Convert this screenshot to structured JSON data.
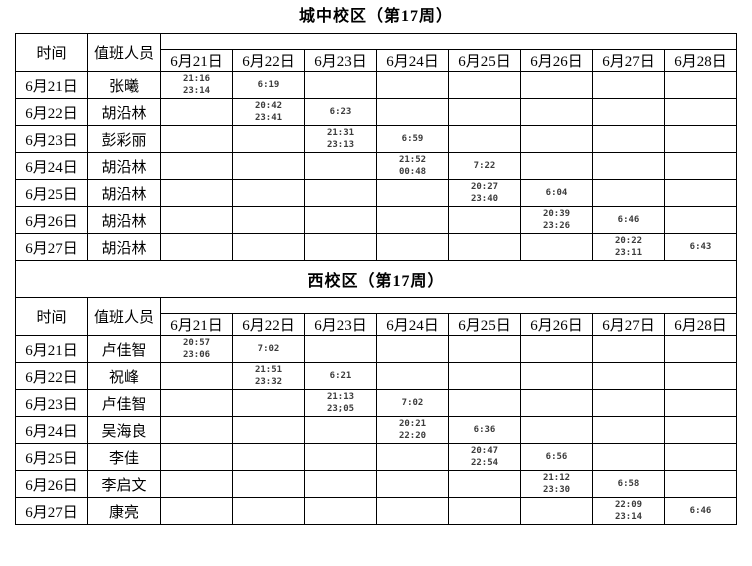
{
  "page": {
    "background": "#ffffff",
    "border_color": "#000000",
    "time_text_color": "#3c3c3c"
  },
  "tables": [
    {
      "title": "城中校区（第17周）",
      "headers": {
        "time": "时间",
        "person": "值班人员"
      },
      "date_columns": [
        "6月21日",
        "6月22日",
        "6月23日",
        "6月24日",
        "6月25日",
        "6月26日",
        "6月27日",
        "6月28日"
      ],
      "rows": [
        {
          "date": "6月21日",
          "person": "张曦",
          "times": [
            "21:16\n23:14",
            "6:19",
            "",
            "",
            "",
            "",
            "",
            ""
          ]
        },
        {
          "date": "6月22日",
          "person": "胡沿林",
          "times": [
            "",
            "20:42\n23:41",
            "6:23",
            "",
            "",
            "",
            "",
            ""
          ]
        },
        {
          "date": "6月23日",
          "person": "彭彩丽",
          "times": [
            "",
            "",
            "21:31\n23:13",
            "6:59",
            "",
            "",
            "",
            ""
          ]
        },
        {
          "date": "6月24日",
          "person": "胡沿林",
          "times": [
            "",
            "",
            "",
            "21:52\n00:48",
            "7:22",
            "",
            "",
            ""
          ]
        },
        {
          "date": "6月25日",
          "person": "胡沿林",
          "times": [
            "",
            "",
            "",
            "",
            "20:27\n23:40",
            "6:04",
            "",
            ""
          ]
        },
        {
          "date": "6月26日",
          "person": "胡沿林",
          "times": [
            "",
            "",
            "",
            "",
            "",
            "20:39\n23:26",
            "6:46",
            ""
          ]
        },
        {
          "date": "6月27日",
          "person": "胡沿林",
          "times": [
            "",
            "",
            "",
            "",
            "",
            "",
            "20:22\n23:11",
            "6:43"
          ]
        }
      ]
    },
    {
      "title": "西校区（第17周）",
      "headers": {
        "time": "时间",
        "person": "值班人员"
      },
      "date_columns": [
        "6月21日",
        "6月22日",
        "6月23日",
        "6月24日",
        "6月25日",
        "6月26日",
        "6月27日",
        "6月28日"
      ],
      "rows": [
        {
          "date": "6月21日",
          "person": "卢佳智",
          "times": [
            "20:57\n23:06",
            "7:02",
            "",
            "",
            "",
            "",
            "",
            ""
          ]
        },
        {
          "date": "6月22日",
          "person": "祝峰",
          "times": [
            "",
            "21:51\n23:32",
            "6:21",
            "",
            "",
            "",
            "",
            ""
          ]
        },
        {
          "date": "6月23日",
          "person": "卢佳智",
          "times": [
            "",
            "",
            "21:13\n23;05",
            "7:02",
            "",
            "",
            "",
            ""
          ]
        },
        {
          "date": "6月24日",
          "person": "吴海良",
          "times": [
            "",
            "",
            "",
            "20:21\n22:20",
            "6:36",
            "",
            "",
            ""
          ]
        },
        {
          "date": "6月25日",
          "person": "李佳",
          "times": [
            "",
            "",
            "",
            "",
            "20:47\n22:54",
            "6:56",
            "",
            ""
          ]
        },
        {
          "date": "6月26日",
          "person": "李启文",
          "times": [
            "",
            "",
            "",
            "",
            "",
            "21:12\n23:30",
            "6:58",
            ""
          ]
        },
        {
          "date": "6月27日",
          "person": "康亮",
          "times": [
            "",
            "",
            "",
            "",
            "",
            "",
            "22:09\n23:14",
            "6:46"
          ]
        }
      ]
    }
  ]
}
